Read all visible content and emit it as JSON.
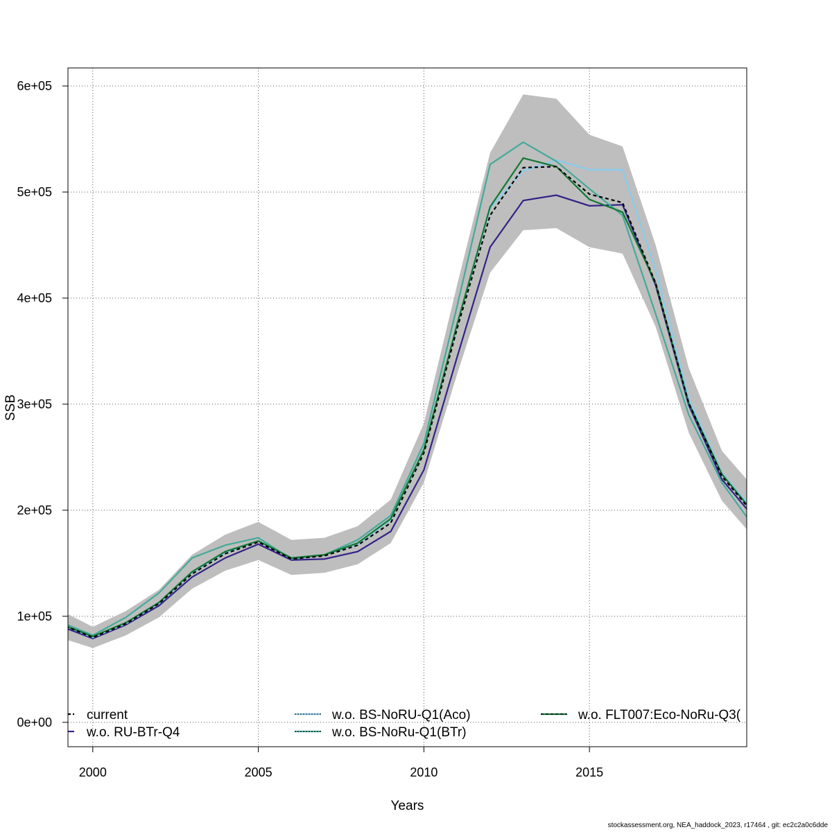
{
  "chart_data": {
    "type": "line",
    "xlabel": "Years",
    "ylabel": "SSB",
    "xlim": [
      1999.25,
      2019.75
    ],
    "ylim": [
      -23000,
      617000
    ],
    "xticks": [
      2000,
      2005,
      2010,
      2015
    ],
    "xtick_labels": [
      "2000",
      "2005",
      "2010",
      "2015"
    ],
    "yticks": [
      0,
      100000,
      200000,
      300000,
      400000,
      500000,
      600000
    ],
    "ytick_labels": [
      "0e+00",
      "1e+05",
      "2e+05",
      "3e+05",
      "4e+05",
      "5e+05",
      "6e+05"
    ],
    "grid": true,
    "legend_position": "bottom",
    "x": [
      1999,
      2000,
      2001,
      2002,
      2003,
      2004,
      2005,
      2006,
      2007,
      2008,
      2009,
      2010,
      2011,
      2012,
      2013,
      2014,
      2015,
      2016,
      2017,
      2018,
      2019,
      2020
    ],
    "confidence_band": {
      "color": "#bebebe",
      "lower": [
        80000,
        70000,
        82000,
        99000,
        126000,
        143000,
        153000,
        139000,
        141000,
        149000,
        169000,
        226000,
        328000,
        424000,
        464000,
        466000,
        448000,
        442000,
        373000,
        273000,
        209000,
        173000
      ],
      "upper": [
        106000,
        90000,
        105000,
        125000,
        158000,
        177000,
        189000,
        172000,
        174000,
        185000,
        210000,
        282000,
        412000,
        537000,
        592000,
        588000,
        554000,
        543000,
        450000,
        334000,
        256000,
        220000
      ]
    },
    "series": [
      {
        "name": "current",
        "color": "#000000",
        "dash": "5,4",
        "values": [
          93000,
          80000,
          93000,
          112000,
          140000,
          159000,
          170000,
          154000,
          157000,
          167000,
          188000,
          254000,
          371000,
          478000,
          523000,
          524000,
          498000,
          490000,
          414000,
          301000,
          232000,
          195000
        ]
      },
      {
        "name": "w.o. RU-BTr-Q4",
        "color": "#332288",
        "dash": "",
        "values": [
          91000,
          79000,
          92000,
          110000,
          137000,
          155000,
          168000,
          153000,
          154000,
          161000,
          180000,
          238000,
          344000,
          448000,
          492000,
          497000,
          487000,
          488000,
          412000,
          299000,
          229000,
          192000
        ]
      },
      {
        "name": "w.o. BS-NoRU-Q1(Aco)",
        "color": "#88ccee",
        "dash": "",
        "values": [
          93000,
          80000,
          93000,
          112000,
          141000,
          160000,
          171000,
          155000,
          158000,
          168000,
          191000,
          257000,
          375000,
          485000,
          520000,
          530000,
          521000,
          521000,
          426000,
          305000,
          235000,
          198000
        ]
      },
      {
        "name": "w.o. BS-NoRu-Q1(BTr)",
        "color": "#44aa99",
        "dash": "",
        "values": [
          95000,
          82000,
          99000,
          122000,
          155000,
          167000,
          174000,
          154000,
          158000,
          172000,
          195000,
          263000,
          392000,
          526000,
          547000,
          529000,
          503000,
          478000,
          385000,
          290000,
          226000,
          183000
        ]
      },
      {
        "name": "w.o. FLT007:Eco-NoRu-Q3(",
        "color": "#117733",
        "dash": "",
        "values": [
          93000,
          81000,
          94000,
          113000,
          142000,
          161000,
          171000,
          155000,
          158000,
          169000,
          192000,
          257000,
          375000,
          486000,
          532000,
          524000,
          493000,
          481000,
          414000,
          301000,
          234000,
          196000
        ]
      }
    ],
    "legend_entries": [
      "current",
      "w.o. RU-BTr-Q4",
      "w.o. BS-NoRU-Q1(Aco)",
      "w.o. BS-NoRu-Q1(BTr)",
      "w.o. FLT007:Eco-NoRu-Q3("
    ]
  },
  "footer": "stockassessment.org, NEA_haddock_2023, r17464 , git: ec2c2a0c6dde"
}
